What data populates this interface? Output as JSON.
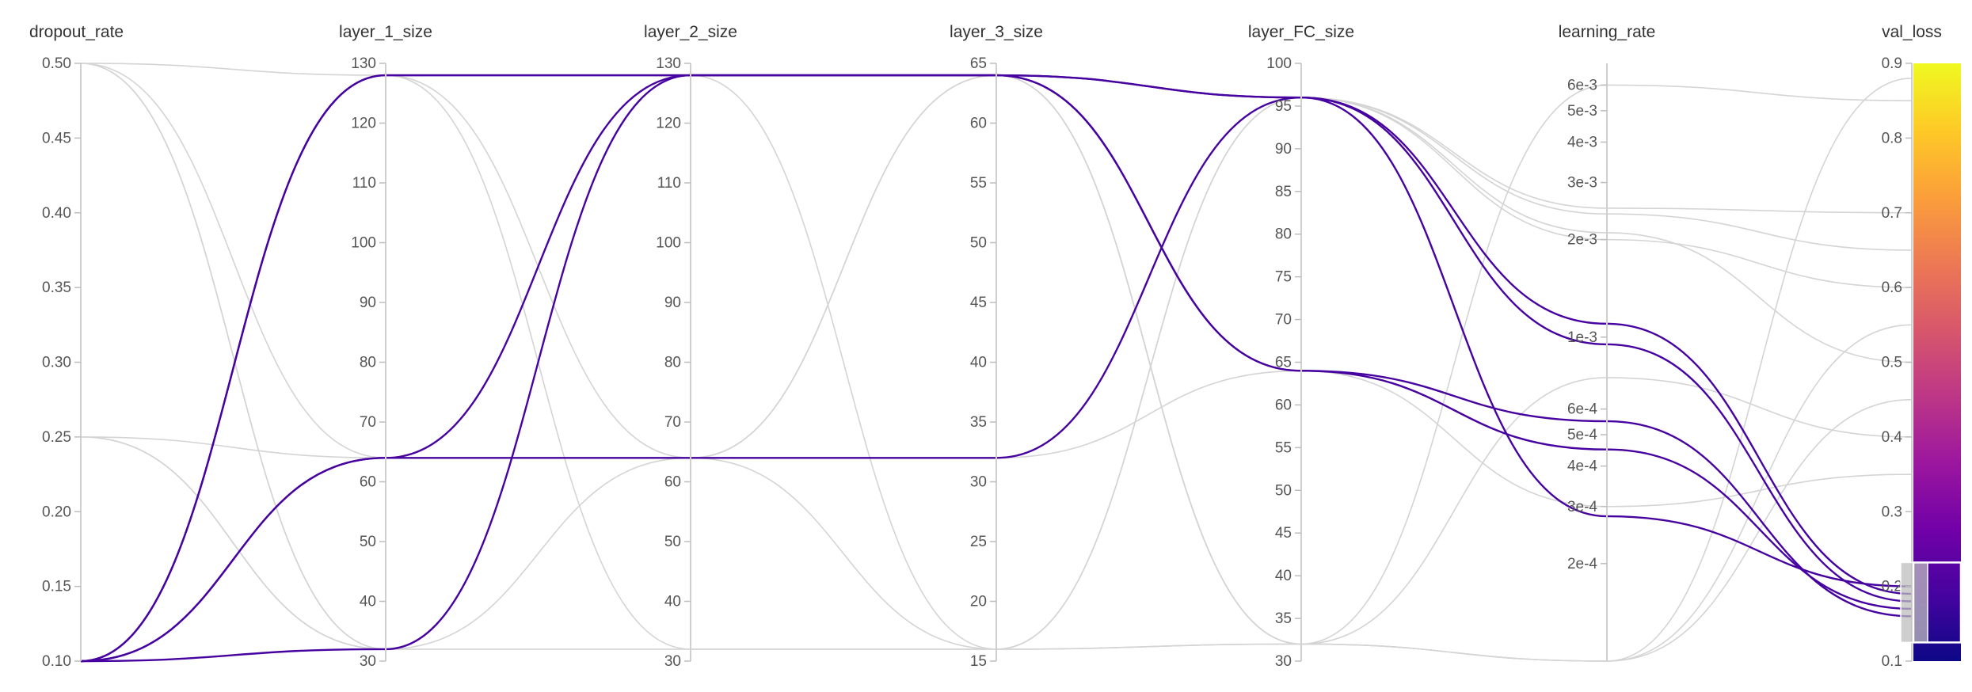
{
  "chart_data": {
    "type": "parallel_coordinates",
    "axes": [
      {
        "key": "dropout_rate",
        "label": "dropout_rate",
        "scale": "linear",
        "range": [
          0.1,
          0.5
        ],
        "ticks": [
          {
            "v": 0.5,
            "t": "0.50"
          },
          {
            "v": 0.45,
            "t": "0.45"
          },
          {
            "v": 0.4,
            "t": "0.40"
          },
          {
            "v": 0.35,
            "t": "0.35"
          },
          {
            "v": 0.3,
            "t": "0.30"
          },
          {
            "v": 0.25,
            "t": "0.25"
          },
          {
            "v": 0.2,
            "t": "0.20"
          },
          {
            "v": 0.15,
            "t": "0.15"
          },
          {
            "v": 0.1,
            "t": "0.10"
          }
        ]
      },
      {
        "key": "layer_1_size",
        "label": "layer_1_size",
        "scale": "linear",
        "range": [
          30,
          130
        ],
        "ticks": [
          {
            "v": 130,
            "t": "130"
          },
          {
            "v": 120,
            "t": "120"
          },
          {
            "v": 110,
            "t": "110"
          },
          {
            "v": 100,
            "t": "100"
          },
          {
            "v": 90,
            "t": "90"
          },
          {
            "v": 80,
            "t": "80"
          },
          {
            "v": 70,
            "t": "70"
          },
          {
            "v": 60,
            "t": "60"
          },
          {
            "v": 50,
            "t": "50"
          },
          {
            "v": 40,
            "t": "40"
          },
          {
            "v": 30,
            "t": "30"
          }
        ]
      },
      {
        "key": "layer_2_size",
        "label": "layer_2_size",
        "scale": "linear",
        "range": [
          30,
          130
        ],
        "ticks": [
          {
            "v": 130,
            "t": "130"
          },
          {
            "v": 120,
            "t": "120"
          },
          {
            "v": 110,
            "t": "110"
          },
          {
            "v": 100,
            "t": "100"
          },
          {
            "v": 90,
            "t": "90"
          },
          {
            "v": 80,
            "t": "80"
          },
          {
            "v": 70,
            "t": "70"
          },
          {
            "v": 60,
            "t": "60"
          },
          {
            "v": 50,
            "t": "50"
          },
          {
            "v": 40,
            "t": "40"
          },
          {
            "v": 30,
            "t": "30"
          }
        ]
      },
      {
        "key": "layer_3_size",
        "label": "layer_3_size",
        "scale": "linear",
        "range": [
          15,
          65
        ],
        "ticks": [
          {
            "v": 65,
            "t": "65"
          },
          {
            "v": 60,
            "t": "60"
          },
          {
            "v": 55,
            "t": "55"
          },
          {
            "v": 50,
            "t": "50"
          },
          {
            "v": 45,
            "t": "45"
          },
          {
            "v": 40,
            "t": "40"
          },
          {
            "v": 35,
            "t": "35"
          },
          {
            "v": 30,
            "t": "30"
          },
          {
            "v": 25,
            "t": "25"
          },
          {
            "v": 20,
            "t": "20"
          },
          {
            "v": 15,
            "t": "15"
          }
        ]
      },
      {
        "key": "layer_FC_size",
        "label": "layer_FC_size",
        "scale": "linear",
        "range": [
          30,
          100
        ],
        "ticks": [
          {
            "v": 100,
            "t": "100"
          },
          {
            "v": 95,
            "t": "95"
          },
          {
            "v": 90,
            "t": "90"
          },
          {
            "v": 85,
            "t": "85"
          },
          {
            "v": 80,
            "t": "80"
          },
          {
            "v": 75,
            "t": "75"
          },
          {
            "v": 70,
            "t": "70"
          },
          {
            "v": 65,
            "t": "65"
          },
          {
            "v": 60,
            "t": "60"
          },
          {
            "v": 55,
            "t": "55"
          },
          {
            "v": 50,
            "t": "50"
          },
          {
            "v": 45,
            "t": "45"
          },
          {
            "v": 40,
            "t": "40"
          },
          {
            "v": 35,
            "t": "35"
          },
          {
            "v": 30,
            "t": "30"
          }
        ]
      },
      {
        "key": "learning_rate",
        "label": "learning_rate",
        "scale": "log",
        "range": [
          0.0001,
          0.007
        ],
        "ticks": [
          {
            "v": 0.006,
            "t": "6e-3"
          },
          {
            "v": 0.005,
            "t": "5e-3"
          },
          {
            "v": 0.004,
            "t": "4e-3"
          },
          {
            "v": 0.003,
            "t": "3e-3"
          },
          {
            "v": 0.002,
            "t": "2e-3"
          },
          {
            "v": 0.001,
            "t": "1e-3"
          },
          {
            "v": 0.0006,
            "t": "6e-4"
          },
          {
            "v": 0.0005,
            "t": "5e-4"
          },
          {
            "v": 0.0004,
            "t": "4e-4"
          },
          {
            "v": 0.0003,
            "t": "3e-4"
          },
          {
            "v": 0.0002,
            "t": "2e-4"
          }
        ]
      },
      {
        "key": "val_loss",
        "label": "val_loss",
        "scale": "linear",
        "range": [
          0.1,
          0.9
        ],
        "ticks": [
          {
            "v": 0.9,
            "t": "0.9"
          },
          {
            "v": 0.8,
            "t": "0.8"
          },
          {
            "v": 0.7,
            "t": "0.7"
          },
          {
            "v": 0.6,
            "t": "0.6"
          },
          {
            "v": 0.5,
            "t": "0.5"
          },
          {
            "v": 0.4,
            "t": "0.4"
          },
          {
            "v": 0.3,
            "t": "0.3"
          },
          {
            "v": 0.2,
            "t": "0.2"
          },
          {
            "v": 0.1,
            "t": "0.1"
          }
        ]
      }
    ],
    "color_axis": "val_loss",
    "colorscale": [
      "#0d0887",
      "#46039f",
      "#7201a8",
      "#9c179e",
      "#bd3786",
      "#d8576b",
      "#ed7953",
      "#fb9f3a",
      "#fdca26",
      "#f0f921"
    ],
    "filter": {
      "axis": "val_loss",
      "range": [
        0.125,
        0.232
      ]
    },
    "runs": [
      {
        "values": [
          0.1,
          128,
          128,
          64,
          96,
          0.0011,
          0.19
        ],
        "highlighted": true
      },
      {
        "values": [
          0.1,
          64,
          128,
          64,
          64,
          0.00055,
          0.16
        ],
        "highlighted": true
      },
      {
        "values": [
          0.1,
          32,
          128,
          64,
          64,
          0.00045,
          0.17
        ],
        "highlighted": true
      },
      {
        "values": [
          0.1,
          64,
          64,
          32,
          96,
          0.00095,
          0.18
        ],
        "highlighted": true
      },
      {
        "values": [
          0.1,
          128,
          128,
          64,
          96,
          0.00028,
          0.2
        ],
        "highlighted": true
      },
      {
        "values": [
          0.5,
          32,
          128,
          16,
          32,
          0.006,
          0.85
        ],
        "highlighted": false
      },
      {
        "values": [
          0.5,
          64,
          64,
          64,
          96,
          0.0025,
          0.7
        ],
        "highlighted": false
      },
      {
        "values": [
          0.5,
          128,
          32,
          16,
          32,
          0.0001,
          0.55
        ],
        "highlighted": false
      },
      {
        "values": [
          0.25,
          64,
          64,
          16,
          96,
          0.002,
          0.6
        ],
        "highlighted": false
      },
      {
        "values": [
          0.25,
          32,
          128,
          64,
          32,
          0.0001,
          0.45
        ],
        "highlighted": false
      },
      {
        "values": [
          0.1,
          32,
          64,
          32,
          64,
          0.0003,
          0.35
        ],
        "highlighted": false
      },
      {
        "values": [
          0.1,
          64,
          128,
          64,
          32,
          0.00075,
          0.4
        ],
        "highlighted": false
      },
      {
        "values": [
          0.25,
          32,
          32,
          16,
          96,
          0.0024,
          0.65
        ],
        "highlighted": false
      },
      {
        "values": [
          0.1,
          128,
          64,
          64,
          96,
          0.0021,
          0.5
        ],
        "highlighted": false
      },
      {
        "values": [
          0.5,
          32,
          128,
          64,
          32,
          0.0001,
          0.88
        ],
        "highlighted": false
      }
    ]
  }
}
